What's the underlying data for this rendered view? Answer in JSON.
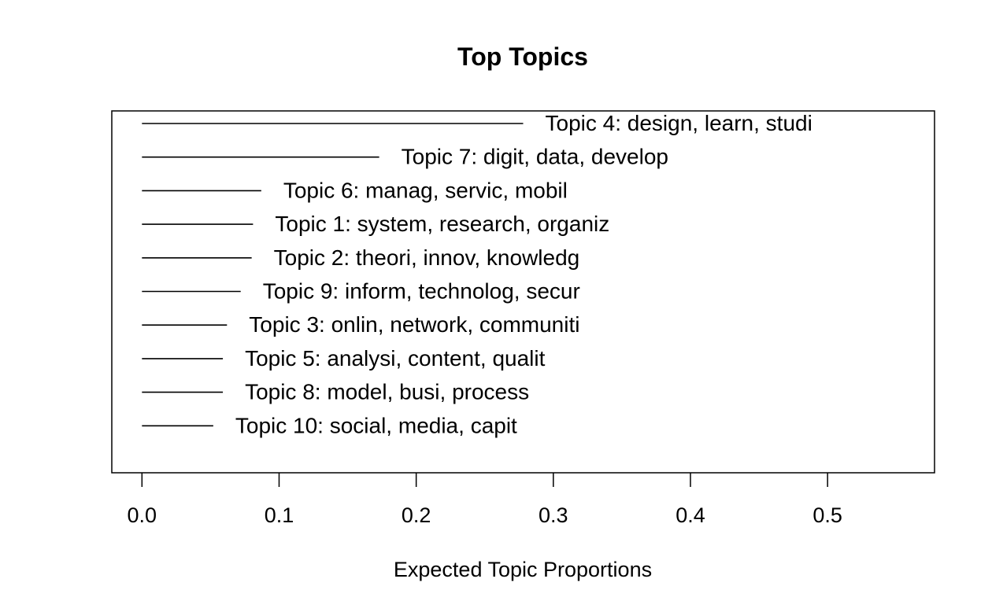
{
  "chart_data": {
    "type": "line",
    "title": "Top Topics",
    "xlabel": "Expected Topic Proportions",
    "ylabel": "",
    "xlim": [
      -0.022,
      0.578
    ],
    "x_ticks": [
      "0.0",
      "0.1",
      "0.2",
      "0.3",
      "0.4",
      "0.5"
    ],
    "x_tick_values": [
      0.0,
      0.1,
      0.2,
      0.3,
      0.4,
      0.5
    ],
    "grid": false,
    "legend": "none",
    "line_color": "#000000",
    "topics": [
      {
        "label": "Topic 4: design, learn, studi",
        "value": 0.278
      },
      {
        "label": "Topic 7: digit, data, develop",
        "value": 0.173
      },
      {
        "label": "Topic 6: manag, servic, mobil",
        "value": 0.087
      },
      {
        "label": "Topic 1: system, research, organiz",
        "value": 0.081
      },
      {
        "label": "Topic 2: theori, innov, knowledg",
        "value": 0.08
      },
      {
        "label": "Topic 9: inform, technolog, secur",
        "value": 0.072
      },
      {
        "label": "Topic 3: onlin, network, communiti",
        "value": 0.062
      },
      {
        "label": "Topic 5: analysi, content, qualit",
        "value": 0.059
      },
      {
        "label": "Topic 8: model, busi, process",
        "value": 0.059
      },
      {
        "label": "Topic 10: social, media, capit",
        "value": 0.052
      }
    ]
  }
}
